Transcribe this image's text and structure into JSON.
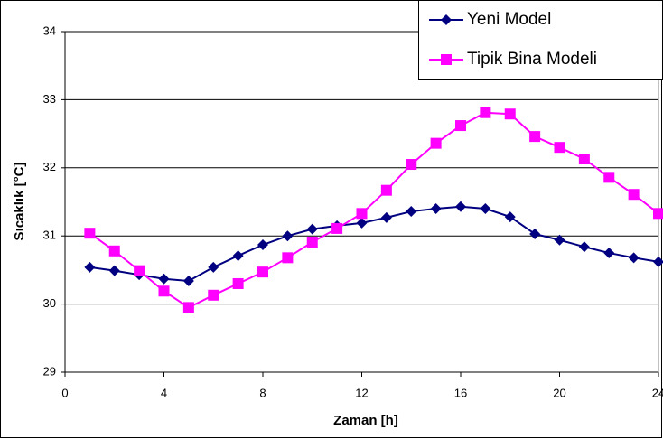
{
  "chart_data": {
    "type": "line",
    "x_label": "Zaman [h]",
    "y_label": "Sıcaklık [°C]",
    "x": [
      1,
      2,
      3,
      4,
      5,
      6,
      7,
      8,
      9,
      10,
      11,
      12,
      13,
      14,
      15,
      16,
      17,
      18,
      19,
      20,
      21,
      22,
      23,
      24
    ],
    "series": [
      {
        "name": "Yeni Model",
        "color": "#000080",
        "marker": "diamond",
        "values": [
          30.54,
          30.49,
          30.43,
          30.37,
          30.34,
          30.54,
          30.71,
          30.87,
          31.0,
          31.1,
          31.15,
          31.19,
          31.27,
          31.36,
          31.4,
          31.43,
          31.4,
          31.28,
          31.03,
          30.94,
          30.84,
          30.75,
          30.68,
          30.62
        ]
      },
      {
        "name": "Tipik Bina Modeli",
        "color": "#ff00ff",
        "marker": "square",
        "values": [
          31.04,
          30.78,
          30.49,
          30.19,
          29.95,
          30.13,
          30.3,
          30.47,
          30.68,
          30.91,
          31.11,
          31.33,
          31.67,
          32.05,
          32.36,
          32.62,
          32.81,
          32.79,
          32.46,
          32.3,
          32.13,
          31.86,
          31.61,
          31.33
        ]
      }
    ],
    "xlim": [
      0,
      24
    ],
    "xticks": [
      0,
      4,
      8,
      12,
      16,
      20,
      24
    ],
    "ylim": [
      29,
      34
    ],
    "yticks": [
      29,
      30,
      31,
      32,
      33,
      34
    ],
    "grid": true,
    "legend": "top-right"
  }
}
